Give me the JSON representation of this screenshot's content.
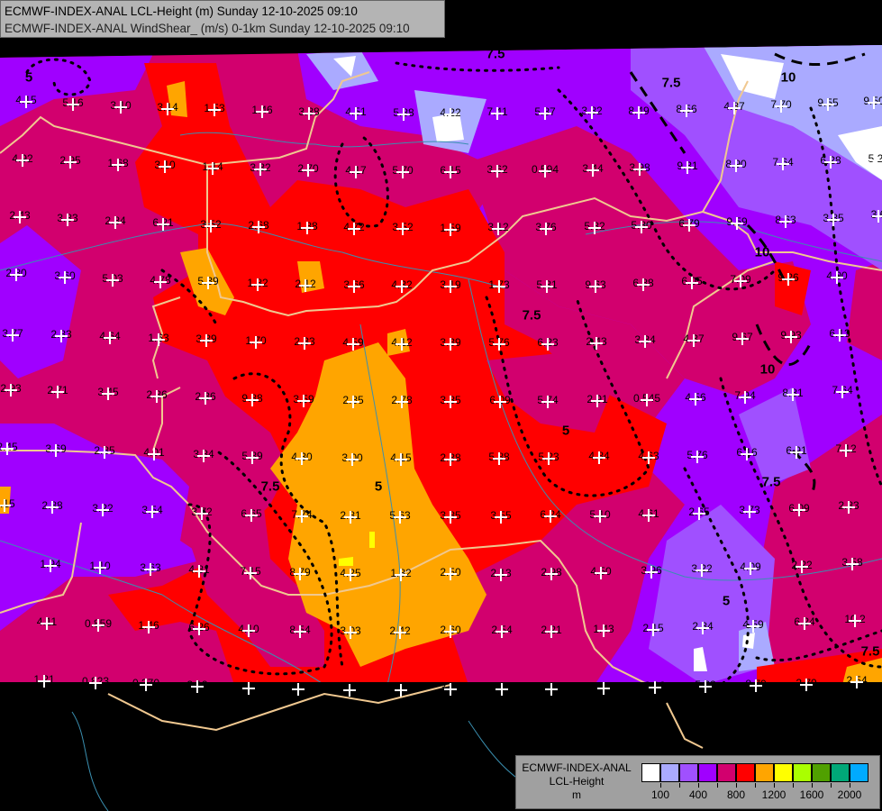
{
  "header": {
    "line1": "ECMWF-INDEX-ANAL LCL-Height (m) Sunday 12-10-2025 09:10",
    "line2": "ECMWF-INDEX-ANAL WindShear_ (m/s) 0-1km Sunday 12-10-2025 09:10"
  },
  "legend": {
    "title": "ECMWF-INDEX-ANAL",
    "variable": "LCL-Height",
    "unit": "m",
    "colors": [
      "#ffffff",
      "#aaaaff",
      "#a050ff",
      "#a000ff",
      "#d2006e",
      "#ff0000",
      "#ffa500",
      "#ffff00",
      "#aaff00",
      "#50a000",
      "#00a878",
      "#00aaff"
    ],
    "tick_labels": [
      "100",
      "400",
      "800",
      "1200",
      "1600",
      "2000"
    ]
  },
  "map_colors": {
    "border": "#f0c890",
    "river": "#3a8fb0",
    "background": "#000000",
    "contour": "#000000"
  },
  "contour_labels": [
    "5",
    "7.5",
    "7.5",
    "10",
    "7.5",
    "5",
    "10",
    "7.5",
    "5",
    "7.5",
    "5",
    "10",
    "7.5"
  ],
  "stations": [
    "4.15",
    "5.16",
    "3.10",
    "3.14",
    "1.53",
    "1.46",
    "3.38",
    "4.51",
    "5.88",
    "4.92",
    "2.95",
    "1.68",
    "3.10",
    "1.14",
    "3.32",
    "2.70",
    "4.17",
    "5.70",
    "2.43",
    "3.83",
    "2.84",
    "6.21",
    "3.52",
    "2.68",
    "1.88",
    "4.72",
    "3.52",
    "2.80",
    "3.60",
    "5.03",
    "4.78",
    "5.39",
    "1.82",
    "2.12",
    "3.66",
    "4.32",
    "3.77",
    "2.83",
    "4.64",
    "1.63",
    "3.39",
    "1.70",
    "2.33",
    "4.59",
    "4.12",
    "4.22",
    "7.41",
    "5.87",
    "3.82",
    "8.49",
    "8.56",
    "4.87",
    "7.70",
    "9.55",
    "9.50",
    "6.15",
    "3.62",
    "0.594",
    "3.44",
    "3.98",
    "9.31",
    "8.90",
    "7.64",
    "6.28",
    "5.2",
    "1.59",
    "3.12",
    "3.76",
    "5.82",
    "5.80",
    "6.79",
    "9.59",
    "8.63",
    "3.85",
    "3.6",
    "3.19",
    "1.73",
    "5.81",
    "9.63",
    "6.88",
    "6.05",
    "7.09",
    "9.26",
    "4.00",
    "3.39",
    "5.76",
    "6.23",
    "2.43",
    "3.84",
    "4.37",
    "9.67",
    "9.93",
    "6.13",
    "2.93",
    "2.71",
    "3.45",
    "2.86",
    "2.36",
    "9.88",
    "3.59",
    "2.85",
    "2.78",
    "2.45",
    "3.69",
    "2.85",
    "4.01",
    "3.84",
    "5.89",
    "4.30",
    "3.00",
    "4.15",
    "2.15",
    "2.88",
    "3.22",
    "3.54",
    "3.72",
    "6.65",
    "7.74",
    "2.81",
    "5.63",
    "1.94",
    "1.10",
    "3.63",
    "4.81",
    "7.15",
    "8.79",
    "4.25",
    "1.82",
    "4.11",
    "0.859",
    "1.46",
    "6.26",
    "4.10",
    "8.54",
    "3.03",
    "2.42",
    "1.21",
    "0.823",
    "0.370",
    "2.19",
    "5.20",
    "3.03",
    "1.64",
    "1.93",
    "3.85",
    "6.09",
    "5.74",
    "2.91",
    "0.545",
    "4.56",
    "7.94",
    "8.81",
    "7.64",
    "2.38",
    "5.88",
    "5.23",
    "4.84",
    "4.63",
    "5.76",
    "6.16",
    "6.91",
    "7.12",
    "3.85",
    "3.55",
    "6.24",
    "5.10",
    "4.61",
    "2.65",
    "3.73",
    "6.09",
    "2.83",
    "2.50",
    "2.13",
    "2.98",
    "4.50",
    "3.96",
    "3.22",
    "4.09",
    "2.22",
    "3.58",
    "2.60",
    "2.54",
    "2.21",
    "1.43",
    "2.15",
    "2.84",
    "4.59",
    "6.24",
    "10.2",
    "3.01",
    "2.82",
    "2.23",
    "1.72",
    "3.12",
    "5.62",
    "8.70",
    "2.70",
    "2.54"
  ]
}
